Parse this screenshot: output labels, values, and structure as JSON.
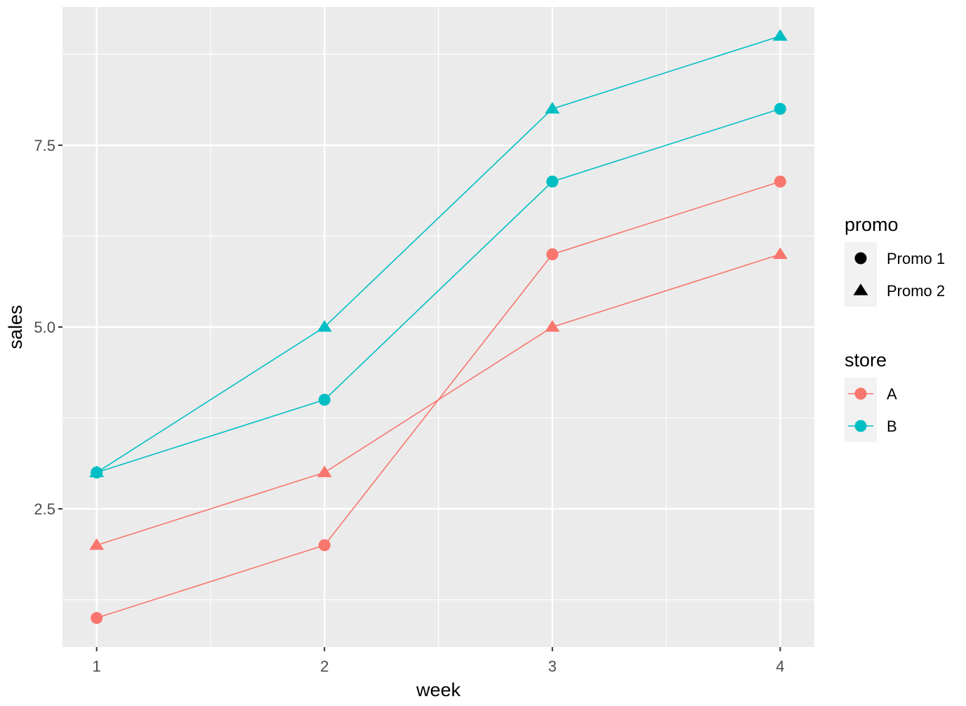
{
  "chart_data": {
    "type": "line",
    "xlabel": "week",
    "ylabel": "sales",
    "x": [
      1,
      2,
      3,
      4
    ],
    "xlim": [
      0.85,
      4.15
    ],
    "ylim": [
      0.6,
      9.4
    ],
    "xticks": [
      "1",
      "2",
      "3",
      "4"
    ],
    "yticks": [
      {
        "value": 2.5,
        "label": "2.5"
      },
      {
        "value": 5.0,
        "label": "5.0"
      },
      {
        "value": 7.5,
        "label": "7.5"
      }
    ],
    "grid": true,
    "colors": {
      "A": "#F8766D",
      "B": "#00BFC4",
      "panel": "#EBEBEB",
      "grid": "#FFFFFF"
    },
    "series": [
      {
        "store": "A",
        "promo": "Promo 1",
        "values": [
          1,
          2,
          6,
          7
        ]
      },
      {
        "store": "A",
        "promo": "Promo 2",
        "values": [
          2,
          3,
          5,
          6
        ]
      },
      {
        "store": "B",
        "promo": "Promo 1",
        "values": [
          3,
          4,
          7,
          8
        ]
      },
      {
        "store": "B",
        "promo": "Promo 2",
        "values": [
          3,
          5,
          8,
          9
        ]
      }
    ],
    "legends": [
      {
        "title": "promo",
        "placement": "right",
        "items": [
          {
            "label": "Promo 1",
            "shape": "circle"
          },
          {
            "label": "Promo 2",
            "shape": "triangle"
          }
        ]
      },
      {
        "title": "store",
        "placement": "right",
        "items": [
          {
            "label": "A",
            "color": "#F8766D"
          },
          {
            "label": "B",
            "color": "#00BFC4"
          }
        ]
      }
    ]
  }
}
